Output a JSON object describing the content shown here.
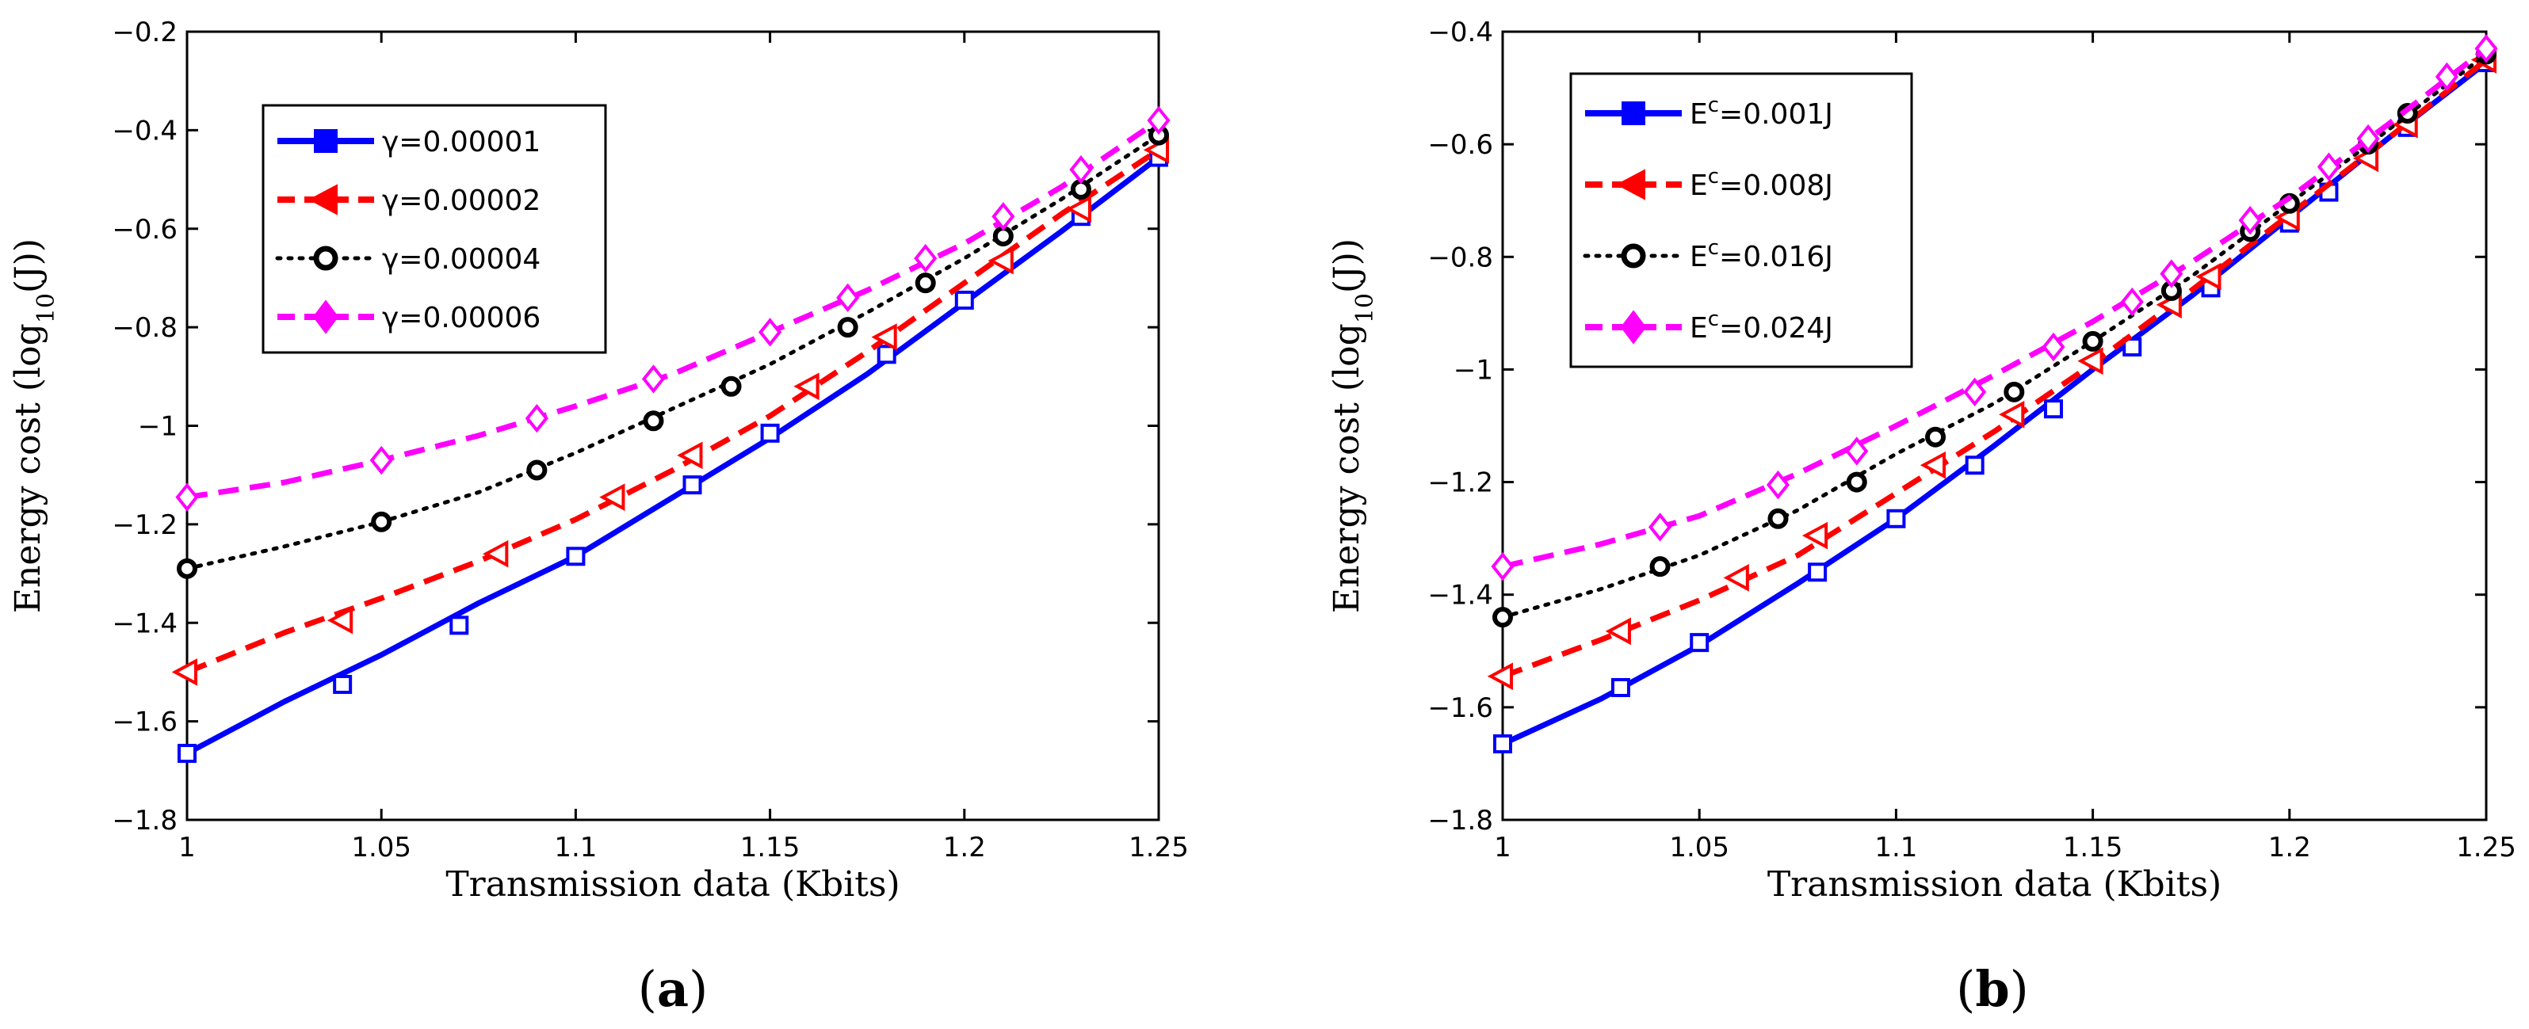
{
  "chart_data": [
    {
      "type": "line",
      "panel_label": {
        "open": "(",
        "letter": "a",
        "close": ")"
      },
      "xlabel": "Transmission data (Kbits)",
      "ylabel": {
        "main": "Energy cost (log",
        "sub": "10",
        "tail": "(J))"
      },
      "xlim": [
        1,
        1.25
      ],
      "ylim": [
        -1.8,
        -0.2
      ],
      "xticks": [
        1,
        1.05,
        1.1,
        1.15,
        1.2,
        1.25
      ],
      "xtick_labels": [
        "1",
        "1.05",
        "1.1",
        "1.15",
        "1.2",
        "1.25"
      ],
      "yticks": [
        -1.8,
        -1.6,
        -1.4,
        -1.2,
        -1,
        -0.8,
        -0.6,
        -0.4,
        -0.2
      ],
      "ytick_labels": [
        "−1.8",
        "−1.6",
        "−1.4",
        "−1.2",
        "−1",
        "−0.8",
        "−0.6",
        "−0.4",
        "−0.2"
      ],
      "grid": false,
      "legend_position": "top-left",
      "series": [
        {
          "name": "γ=0.00001",
          "color": "#0000ff",
          "dash": "solid",
          "marker": "square",
          "line_x": [
            1,
            1.025,
            1.05,
            1.075,
            1.1,
            1.125,
            1.15,
            1.175,
            1.2,
            1.225,
            1.25
          ],
          "line_y": [
            -1.665,
            -1.56,
            -1.465,
            -1.36,
            -1.265,
            -1.145,
            -1.025,
            -0.895,
            -0.75,
            -0.605,
            -0.455
          ],
          "marker_x": [
            1,
            1.04,
            1.07,
            1.1,
            1.13,
            1.15,
            1.18,
            1.2,
            1.23,
            1.25
          ],
          "marker_y": [
            -1.665,
            -1.525,
            -1.405,
            -1.265,
            -1.12,
            -1.015,
            -0.855,
            -0.745,
            -0.575,
            -0.455
          ]
        },
        {
          "name": "γ=0.00002",
          "color": "#ff0000",
          "dash": "dashed",
          "marker": "triangle-left",
          "line_x": [
            1,
            1.025,
            1.05,
            1.075,
            1.1,
            1.125,
            1.15,
            1.175,
            1.2,
            1.225,
            1.25
          ],
          "line_y": [
            -1.5,
            -1.42,
            -1.35,
            -1.275,
            -1.19,
            -1.09,
            -0.98,
            -0.85,
            -0.71,
            -0.57,
            -0.44
          ],
          "marker_x": [
            1,
            1.04,
            1.08,
            1.11,
            1.13,
            1.16,
            1.18,
            1.21,
            1.23,
            1.25
          ],
          "marker_y": [
            -1.5,
            -1.395,
            -1.26,
            -1.145,
            -1.06,
            -0.92,
            -0.82,
            -0.665,
            -0.56,
            -0.44
          ]
        },
        {
          "name": "γ=0.00004",
          "color": "#000000",
          "dash": "dotted",
          "marker": "circle",
          "line_x": [
            1,
            1.025,
            1.05,
            1.075,
            1.1,
            1.125,
            1.15,
            1.175,
            1.2,
            1.225,
            1.25
          ],
          "line_y": [
            -1.29,
            -1.245,
            -1.195,
            -1.135,
            -1.055,
            -0.965,
            -0.875,
            -0.77,
            -0.66,
            -0.54,
            -0.41
          ],
          "marker_x": [
            1,
            1.05,
            1.09,
            1.12,
            1.14,
            1.17,
            1.19,
            1.21,
            1.23,
            1.25
          ],
          "marker_y": [
            -1.29,
            -1.195,
            -1.09,
            -0.99,
            -0.92,
            -0.8,
            -0.71,
            -0.615,
            -0.52,
            -0.41
          ]
        },
        {
          "name": "γ=0.00006",
          "color": "#ff00ff",
          "dash": "dashed",
          "marker": "diamond",
          "line_x": [
            1,
            1.025,
            1.05,
            1.075,
            1.1,
            1.125,
            1.15,
            1.175,
            1.2,
            1.225,
            1.25
          ],
          "line_y": [
            -1.145,
            -1.115,
            -1.07,
            -1.02,
            -0.96,
            -0.895,
            -0.81,
            -0.725,
            -0.63,
            -0.515,
            -0.38
          ],
          "marker_x": [
            1,
            1.05,
            1.09,
            1.12,
            1.15,
            1.17,
            1.19,
            1.21,
            1.23,
            1.25
          ],
          "marker_y": [
            -1.145,
            -1.07,
            -0.985,
            -0.905,
            -0.81,
            -0.74,
            -0.66,
            -0.575,
            -0.48,
            -0.38
          ]
        }
      ]
    },
    {
      "type": "line",
      "panel_label": {
        "open": "(",
        "letter": "b",
        "close": ")"
      },
      "xlabel": "Transmission data (Kbits)",
      "ylabel": {
        "main": "Energy cost (log",
        "sub": "10",
        "tail": "(J))"
      },
      "xlim": [
        1,
        1.25
      ],
      "ylim": [
        -1.8,
        -0.4
      ],
      "xticks": [
        1,
        1.05,
        1.1,
        1.15,
        1.2,
        1.25
      ],
      "xtick_labels": [
        "1",
        "1.05",
        "1.1",
        "1.15",
        "1.2",
        "1.25"
      ],
      "yticks": [
        -1.8,
        -1.6,
        -1.4,
        -1.2,
        -1,
        -0.8,
        -0.6,
        -0.4
      ],
      "ytick_labels": [
        "−1.8",
        "−1.6",
        "−1.4",
        "−1.2",
        "−1",
        "−0.8",
        "−0.6",
        "−0.4"
      ],
      "grid": false,
      "legend_position": "top-left",
      "series": [
        {
          "name": "E",
          "name_sup": "c",
          "name_tail": "=0.001J",
          "color": "#0000ff",
          "dash": "solid",
          "marker": "square",
          "line_x": [
            1,
            1.025,
            1.05,
            1.075,
            1.1,
            1.125,
            1.15,
            1.175,
            1.2,
            1.225,
            1.25
          ],
          "line_y": [
            -1.665,
            -1.585,
            -1.49,
            -1.38,
            -1.265,
            -1.135,
            -1.0,
            -0.87,
            -0.73,
            -0.59,
            -0.455
          ],
          "marker_x": [
            1,
            1.03,
            1.05,
            1.08,
            1.1,
            1.12,
            1.14,
            1.16,
            1.18,
            1.2,
            1.21,
            1.23,
            1.25
          ],
          "marker_y": [
            -1.665,
            -1.565,
            -1.485,
            -1.36,
            -1.265,
            -1.17,
            -1.07,
            -0.96,
            -0.855,
            -0.74,
            -0.685,
            -0.57,
            -0.455
          ]
        },
        {
          "name": "E",
          "name_sup": "c",
          "name_tail": "=0.008J",
          "color": "#ff0000",
          "dash": "dashed",
          "marker": "triangle-left",
          "line_x": [
            1,
            1.025,
            1.05,
            1.075,
            1.1,
            1.125,
            1.15,
            1.175,
            1.2,
            1.225,
            1.25
          ],
          "line_y": [
            -1.545,
            -1.48,
            -1.41,
            -1.33,
            -1.22,
            -1.11,
            -0.99,
            -0.86,
            -0.725,
            -0.59,
            -0.45
          ],
          "marker_x": [
            1,
            1.03,
            1.06,
            1.08,
            1.11,
            1.13,
            1.15,
            1.17,
            1.18,
            1.2,
            1.22,
            1.23,
            1.25
          ],
          "marker_y": [
            -1.545,
            -1.465,
            -1.37,
            -1.295,
            -1.17,
            -1.08,
            -0.985,
            -0.885,
            -0.835,
            -0.73,
            -0.625,
            -0.565,
            -0.45
          ]
        },
        {
          "name": "E",
          "name_sup": "c",
          "name_tail": "=0.016J",
          "color": "#000000",
          "dash": "dotted",
          "marker": "circle",
          "line_x": [
            1,
            1.025,
            1.05,
            1.075,
            1.1,
            1.125,
            1.15,
            1.175,
            1.2,
            1.225,
            1.25
          ],
          "line_y": [
            -1.44,
            -1.39,
            -1.33,
            -1.25,
            -1.15,
            -1.06,
            -0.95,
            -0.835,
            -0.705,
            -0.575,
            -0.44
          ],
          "marker_x": [
            1,
            1.04,
            1.07,
            1.09,
            1.11,
            1.13,
            1.15,
            1.17,
            1.19,
            1.2,
            1.22,
            1.23,
            1.25
          ],
          "marker_y": [
            -1.44,
            -1.35,
            -1.265,
            -1.2,
            -1.12,
            -1.04,
            -0.95,
            -0.86,
            -0.755,
            -0.705,
            -0.6,
            -0.545,
            -0.44
          ]
        },
        {
          "name": "E",
          "name_sup": "c",
          "name_tail": "=0.024J",
          "color": "#ff00ff",
          "dash": "dashed",
          "marker": "diamond",
          "line_x": [
            1,
            1.025,
            1.05,
            1.075,
            1.1,
            1.125,
            1.15,
            1.175,
            1.2,
            1.225,
            1.25
          ],
          "line_y": [
            -1.35,
            -1.31,
            -1.26,
            -1.185,
            -1.1,
            -1.01,
            -0.915,
            -0.81,
            -0.695,
            -0.565,
            -0.43
          ],
          "marker_x": [
            1,
            1.04,
            1.07,
            1.09,
            1.12,
            1.14,
            1.16,
            1.17,
            1.19,
            1.21,
            1.22,
            1.24,
            1.25
          ],
          "marker_y": [
            -1.35,
            -1.28,
            -1.205,
            -1.145,
            -1.04,
            -0.96,
            -0.88,
            -0.83,
            -0.735,
            -0.64,
            -0.59,
            -0.48,
            -0.43
          ]
        }
      ]
    }
  ]
}
